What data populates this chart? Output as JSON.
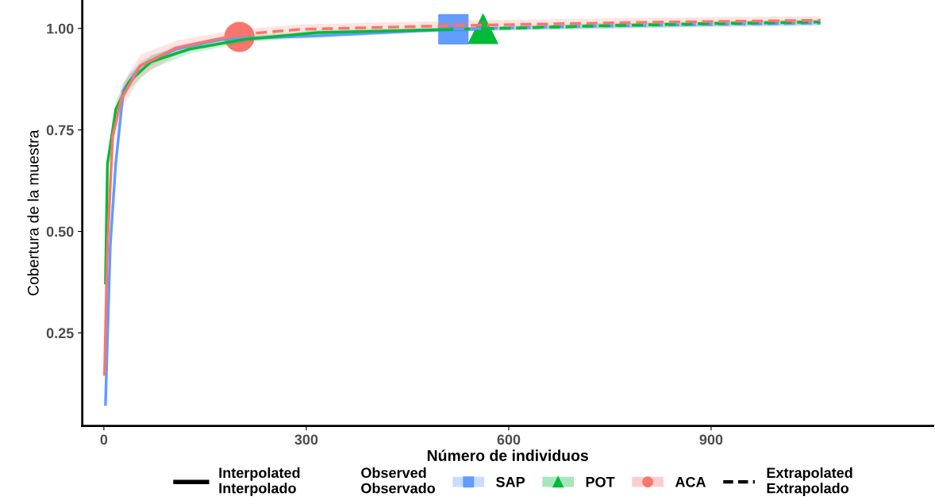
{
  "chart_data": {
    "type": "line",
    "xlabel": "Número de individuos",
    "ylabel": "Cobertura de la muestra",
    "xlim": [
      -32,
      1229
    ],
    "ylim": [
      0.021,
      1.07
    ],
    "xticks": [
      0,
      300,
      600,
      900
    ],
    "yticks": [
      {
        "value": 0.25,
        "label": "0.25"
      },
      {
        "value": 0.5,
        "label": "0.50"
      },
      {
        "value": 0.75,
        "label": "0.75"
      },
      {
        "value": 1.0,
        "label": "1.00"
      }
    ],
    "grid": false,
    "legend": "bottom",
    "legend_title": "Observed\nObservado",
    "annotations": [
      "Interpolated\nInterpolado",
      "Extrapolated\nExtrapolado"
    ],
    "series": [
      {
        "name": "SAP",
        "line_style": "solid",
        "color": "#619cff",
        "x": [
          2.4,
          9.5,
          17.5,
          29,
          54,
          107,
          175,
          318,
          518
        ],
        "values": [
          0.074,
          0.465,
          0.666,
          0.848,
          0.908,
          0.949,
          0.973,
          0.982,
          0.998
        ],
        "lower": [
          0.07,
          0.44,
          0.64,
          0.83,
          0.895,
          0.94,
          0.966,
          0.976,
          0.993
        ],
        "upper": [
          0.08,
          0.49,
          0.69,
          0.866,
          0.92,
          0.958,
          0.98,
          0.988,
          1.003
        ]
      },
      {
        "name": "POT",
        "line_style": "solid",
        "color": "#00ba38",
        "x": [
          2.4,
          5.3,
          17.6,
          37.6,
          70,
          127,
          208,
          318,
          562
        ],
        "values": [
          0.373,
          0.666,
          0.8,
          0.869,
          0.918,
          0.949,
          0.973,
          0.99,
          0.999
        ],
        "lower": [
          0.36,
          0.65,
          0.78,
          0.85,
          0.9,
          0.938,
          0.965,
          0.984,
          0.994
        ],
        "upper": [
          0.385,
          0.68,
          0.82,
          0.888,
          0.934,
          0.96,
          0.98,
          0.996,
          1.004
        ]
      },
      {
        "name": "ACA",
        "line_style": "solid",
        "color": "#f8766d",
        "x": [
          1,
          5.3,
          13,
          26,
          54,
          107,
          201
        ],
        "values": [
          0.148,
          0.465,
          0.734,
          0.828,
          0.908,
          0.952,
          0.985
        ],
        "lower": [
          0.13,
          0.44,
          0.71,
          0.8,
          0.88,
          0.935,
          0.972
        ],
        "upper": [
          0.17,
          0.49,
          0.76,
          0.86,
          0.935,
          0.97,
          0.998
        ]
      },
      {
        "type": "line",
        "line_style": "dashed",
        "color": "#619cff",
        "x": [
          518,
          700,
          900,
          1062
        ],
        "values": [
          0.998,
          1.005,
          1.01,
          1.013
        ],
        "lower": [
          0.993,
          0.998,
          1.003,
          1.006
        ],
        "upper": [
          1.003,
          1.011,
          1.016,
          1.02
        ]
      },
      {
        "type": "line",
        "line_style": "dashed",
        "color": "#00ba38",
        "x": [
          562,
          750,
          900,
          1062
        ],
        "values": [
          0.999,
          1.007,
          1.012,
          1.016
        ],
        "lower": [
          0.994,
          1.0,
          1.005,
          1.009
        ],
        "upper": [
          1.004,
          1.013,
          1.018,
          1.022
        ]
      },
      {
        "type": "line",
        "line_style": "dashed",
        "color": "#f8766d",
        "x": [
          201,
          294,
          553,
          800,
          1062
        ],
        "values": [
          0.985,
          0.998,
          1.008,
          1.015,
          1.02
        ],
        "lower": [
          0.972,
          0.985,
          0.996,
          1.004,
          1.01
        ],
        "upper": [
          0.998,
          1.01,
          1.02,
          1.026,
          1.03
        ]
      },
      {
        "type": "scatter",
        "marker": "square",
        "color": "#619cff",
        "x": [
          518
        ],
        "values": [
          0.998
        ]
      },
      {
        "type": "scatter",
        "marker": "triangle",
        "color": "#00ba38",
        "x": [
          562
        ],
        "values": [
          0.999
        ]
      },
      {
        "type": "scatter",
        "marker": "circle",
        "color": "#f8766d",
        "x": [
          201
        ],
        "values": [
          0.979
        ]
      }
    ]
  }
}
